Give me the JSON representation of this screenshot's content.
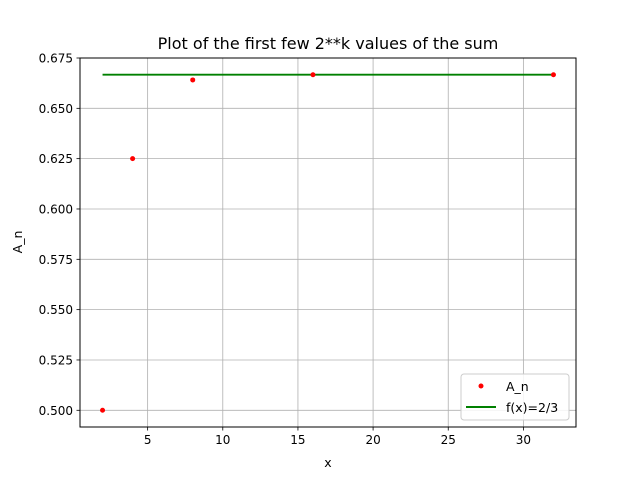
{
  "chart_data": {
    "type": "scatter",
    "title": "Plot of the first few 2**k values of the sum",
    "xlabel": "x",
    "ylabel": "A_n",
    "xlim": [
      0.5,
      33.5
    ],
    "ylim": [
      0.4917,
      0.675
    ],
    "x_ticks": [
      5,
      10,
      15,
      20,
      25,
      30
    ],
    "x_tick_labels": [
      "5",
      "10",
      "15",
      "20",
      "25",
      "30"
    ],
    "y_ticks": [
      0.5,
      0.525,
      0.55,
      0.575,
      0.6,
      0.625,
      0.65,
      0.675
    ],
    "y_tick_labels": [
      "0.500",
      "0.525",
      "0.550",
      "0.575",
      "0.600",
      "0.625",
      "0.650",
      "0.675"
    ],
    "grid": true,
    "legend_position": "lower-right",
    "series": [
      {
        "name": "A_n",
        "kind": "points",
        "color": "#ff0000",
        "x": [
          2,
          4,
          8,
          16,
          32
        ],
        "y": [
          0.5,
          0.625,
          0.6641,
          0.6667,
          0.6667
        ]
      },
      {
        "name": "f(x)=2/3",
        "kind": "line",
        "color": "#008000",
        "x": [
          2,
          32
        ],
        "y": [
          0.6667,
          0.6667
        ]
      }
    ]
  }
}
